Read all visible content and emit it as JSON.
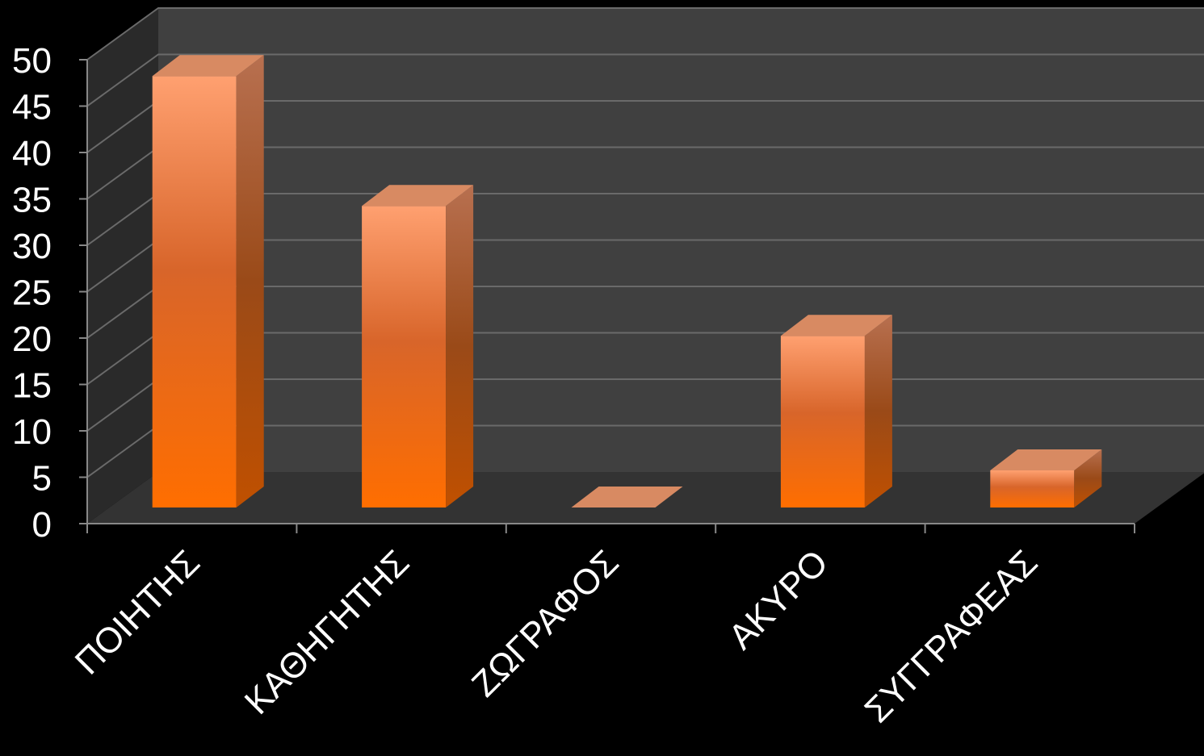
{
  "chart_data": {
    "type": "bar",
    "categories": [
      "ΠΟΙΗΤΗΣ",
      "ΚΑΘΗΓΗΤΗΣ",
      "ΖΩΓΡΑΦΟΣ",
      "ΑΚΥΡΟ",
      "ΣΥΓΓΡΑΦΕΑΣ"
    ],
    "values": [
      46.5,
      32.5,
      0,
      18.5,
      4
    ],
    "yticks": [
      "0",
      "5",
      "10",
      "15",
      "20",
      "25",
      "30",
      "35",
      "40",
      "45",
      "50"
    ],
    "ylim": [
      0,
      50
    ],
    "grid": true,
    "three_d": true,
    "colors": {
      "background": "#000000",
      "back_wall": "#404040",
      "side_wall": "#2a2a2a",
      "floor": "#333333",
      "grid": "#6a6a6a",
      "bar_top_face": "#ff9a5c",
      "bar_bottom_face": "#ff6e00",
      "bar_side_top": "#b06a40",
      "bar_side_bottom": "#c05000",
      "bar_cap": "#d88a62"
    }
  }
}
